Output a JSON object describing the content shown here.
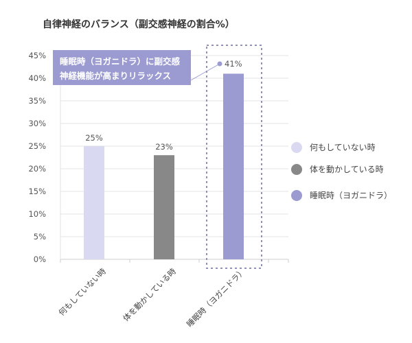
{
  "chart_data": {
    "type": "bar",
    "title": "自律神経のバランス（副交感神経の割合%）",
    "categories": [
      "何もしていない時",
      "体を動かしている時",
      "睡眠時（ヨガニドラ）"
    ],
    "values": [
      25,
      23,
      41
    ],
    "data_labels": [
      "25%",
      "23%",
      "41%"
    ],
    "colors": [
      "#d9d9f2",
      "#888888",
      "#9b9bd2"
    ],
    "ylim": [
      0,
      45
    ],
    "yticks": [
      0,
      5,
      10,
      15,
      20,
      25,
      30,
      35,
      40,
      45
    ],
    "ytick_labels": [
      "0%",
      "5%",
      "10%",
      "15%",
      "20%",
      "25%",
      "30%",
      "35%",
      "40%",
      "45%"
    ],
    "xlabel": "",
    "ylabel": "",
    "grid": true,
    "legend_position": "right",
    "legend": [
      "何もしていない時",
      "体を動かしている時",
      "睡眠時（ヨガニドラ）"
    ],
    "highlight_index": 2,
    "annotation": [
      "睡眠時（ヨガニドラ）に副交感",
      "神経機能が高まりリラックス"
    ],
    "annotation_color": "#9b9bd2"
  }
}
